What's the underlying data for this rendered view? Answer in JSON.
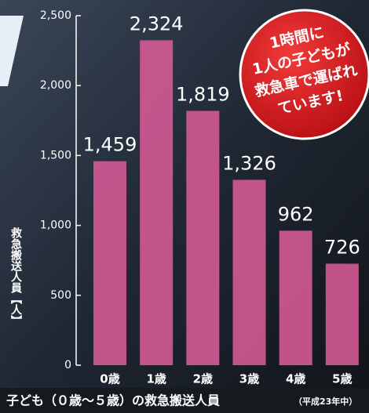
{
  "chart_data": {
    "type": "bar",
    "categories": [
      "0歳",
      "1歳",
      "2歳",
      "3歳",
      "4歳",
      "5歳"
    ],
    "values": [
      1459,
      2324,
      1819,
      1326,
      962,
      726
    ],
    "value_labels": [
      "1,459",
      "2,324",
      "1,819",
      "1,326",
      "962",
      "726"
    ],
    "color": "#d45a93",
    "ylim": [
      0,
      2500
    ],
    "yticks": [
      0,
      500,
      {
        "value": 1000,
        "label": "1,000"
      },
      {
        "value": 1500,
        "label": "1,500"
      },
      {
        "value": 2000,
        "label": "2,000"
      },
      {
        "value": 2500,
        "label": "2,500"
      }
    ],
    "y_label": "救急搬送人員【人】",
    "x_label": "子ども（０歳～５歳）の救急搬送人員",
    "x_label_note": "（平成23年中）",
    "annotation": [
      "1時間に",
      "1人の子どもが",
      "救急車で運ばれ",
      "ています!"
    ]
  }
}
